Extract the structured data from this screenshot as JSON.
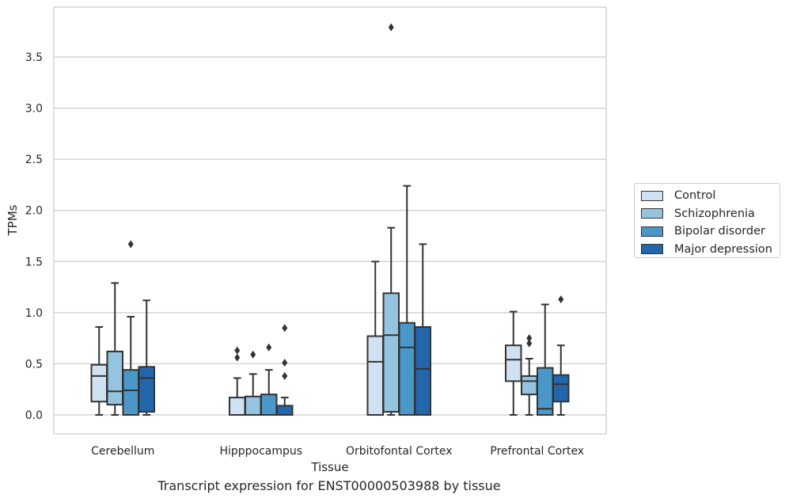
{
  "chart_data": {
    "type": "box",
    "title": "",
    "caption": "Transcript expression for ENST00000503988 by tissue",
    "xlabel": "Tissue",
    "ylabel": "TPMs",
    "ylim": [
      -0.18,
      3.98
    ],
    "yticks": [
      "0.0",
      "0.5",
      "1.0",
      "1.5",
      "2.0",
      "2.5",
      "3.0",
      "3.5"
    ],
    "ytick_values": [
      0,
      0.5,
      1.0,
      1.5,
      2.0,
      2.5,
      3.0,
      3.5
    ],
    "grid": true,
    "legend_position": "right",
    "categories": [
      "Cerebellum",
      "Hipppocampus",
      "Orbitofontal Cortex",
      "Prefrontal Cortex"
    ],
    "series": [
      {
        "name": "Control",
        "color": "#d0e1f2",
        "boxes": [
          {
            "whisker_low": 0.0,
            "q1": 0.13,
            "median": 0.38,
            "q3": 0.49,
            "whisker_high": 0.86,
            "outliers": []
          },
          {
            "whisker_low": 0.0,
            "q1": 0.0,
            "median": 0.0,
            "q3": 0.17,
            "whisker_high": 0.36,
            "outliers": [
              0.56,
              0.63
            ]
          },
          {
            "whisker_low": 0.0,
            "q1": 0.0,
            "median": 0.52,
            "q3": 0.77,
            "whisker_high": 1.5,
            "outliers": []
          },
          {
            "whisker_low": 0.0,
            "q1": 0.33,
            "median": 0.54,
            "q3": 0.68,
            "whisker_high": 1.01,
            "outliers": []
          }
        ]
      },
      {
        "name": "Schizophrenia",
        "color": "#94c4df",
        "boxes": [
          {
            "whisker_low": 0.0,
            "q1": 0.1,
            "median": 0.23,
            "q3": 0.62,
            "whisker_high": 1.29,
            "outliers": []
          },
          {
            "whisker_low": 0.0,
            "q1": 0.0,
            "median": 0.0,
            "q3": 0.18,
            "whisker_high": 0.4,
            "outliers": [
              0.59
            ]
          },
          {
            "whisker_low": 0.0,
            "q1": 0.03,
            "median": 0.78,
            "q3": 1.19,
            "whisker_high": 1.83,
            "outliers": [
              3.79
            ]
          },
          {
            "whisker_low": 0.0,
            "q1": 0.2,
            "median": 0.33,
            "q3": 0.38,
            "whisker_high": 0.55,
            "outliers": [
              0.7,
              0.75
            ]
          }
        ]
      },
      {
        "name": "Bipolar disorder",
        "color": "#4a98c9",
        "boxes": [
          {
            "whisker_low": 0.0,
            "q1": 0.0,
            "median": 0.24,
            "q3": 0.44,
            "whisker_high": 0.96,
            "outliers": [
              1.67
            ]
          },
          {
            "whisker_low": 0.0,
            "q1": 0.0,
            "median": 0.0,
            "q3": 0.2,
            "whisker_high": 0.44,
            "outliers": [
              0.66
            ]
          },
          {
            "whisker_low": 0.0,
            "q1": 0.0,
            "median": 0.66,
            "q3": 0.9,
            "whisker_high": 2.24,
            "outliers": []
          },
          {
            "whisker_low": 0.0,
            "q1": 0.0,
            "median": 0.06,
            "q3": 0.46,
            "whisker_high": 1.08,
            "outliers": []
          }
        ]
      },
      {
        "name": "Major depression",
        "color": "#2366ac",
        "boxes": [
          {
            "whisker_low": 0.0,
            "q1": 0.03,
            "median": 0.36,
            "q3": 0.47,
            "whisker_high": 1.12,
            "outliers": []
          },
          {
            "whisker_low": 0.0,
            "q1": 0.0,
            "median": 0.0,
            "q3": 0.09,
            "whisker_high": 0.17,
            "outliers": [
              0.38,
              0.51,
              0.85
            ]
          },
          {
            "whisker_low": 0.0,
            "q1": 0.0,
            "median": 0.45,
            "q3": 0.86,
            "whisker_high": 1.67,
            "outliers": []
          },
          {
            "whisker_low": 0.0,
            "q1": 0.13,
            "median": 0.3,
            "q3": 0.39,
            "whisker_high": 0.68,
            "outliers": [
              1.13
            ]
          }
        ]
      }
    ]
  }
}
